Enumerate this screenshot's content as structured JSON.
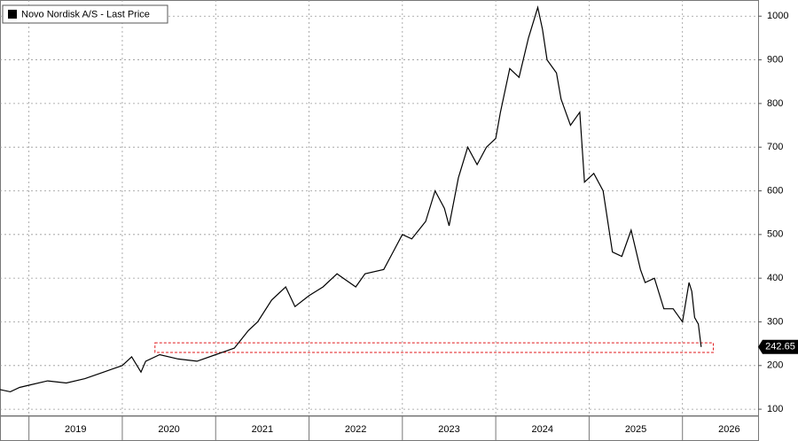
{
  "chart_data": {
    "type": "line",
    "series": [
      {
        "name": "Novo Nordisk A/S - Last Price",
        "color": "#000000",
        "x": [
          2018.69,
          2018.8,
          2018.9,
          2019.0,
          2019.2,
          2019.4,
          2019.6,
          2019.8,
          2020.0,
          2020.1,
          2020.2,
          2020.25,
          2020.4,
          2020.6,
          2020.8,
          2021.0,
          2021.2,
          2021.35,
          2021.45,
          2021.6,
          2021.75,
          2021.85,
          2022.0,
          2022.15,
          2022.3,
          2022.5,
          2022.6,
          2022.8,
          2022.9,
          2023.0,
          2023.1,
          2023.25,
          2023.35,
          2023.45,
          2023.5,
          2023.6,
          2023.7,
          2023.8,
          2023.9,
          2024.0,
          2024.05,
          2024.15,
          2024.25,
          2024.35,
          2024.45,
          2024.5,
          2024.55,
          2024.65,
          2024.7,
          2024.8,
          2024.9,
          2024.95,
          2025.05,
          2025.15,
          2025.25,
          2025.35,
          2025.45,
          2025.55,
          2025.6,
          2025.7,
          2025.8,
          2025.9,
          2026.0,
          2026.07,
          2026.1,
          2026.13,
          2026.17,
          2026.2
        ],
        "values": [
          145,
          140,
          150,
          155,
          165,
          160,
          170,
          185,
          200,
          220,
          185,
          210,
          225,
          215,
          210,
          225,
          240,
          280,
          300,
          350,
          380,
          335,
          360,
          380,
          410,
          380,
          410,
          420,
          460,
          500,
          490,
          530,
          600,
          560,
          520,
          630,
          700,
          660,
          700,
          720,
          780,
          880,
          860,
          950,
          1020,
          970,
          900,
          870,
          810,
          750,
          780,
          620,
          640,
          600,
          460,
          450,
          510,
          420,
          390,
          400,
          330,
          330,
          300,
          390,
          370,
          310,
          295,
          242.65
        ]
      }
    ],
    "xlim": [
      2018.69,
      2026.81
    ],
    "xticks": [
      {
        "value": 2019,
        "label": "2019"
      },
      {
        "value": 2020,
        "label": "2020"
      },
      {
        "value": 2021,
        "label": "2021"
      },
      {
        "value": 2022,
        "label": "2022"
      },
      {
        "value": 2023,
        "label": "2023"
      },
      {
        "value": 2024,
        "label": "2024"
      },
      {
        "value": 2025,
        "label": "2025"
      },
      {
        "value": 2026,
        "label": "2026"
      }
    ],
    "ylim": [
      84,
      1037
    ],
    "yticks": [
      100,
      200,
      300,
      400,
      500,
      600,
      700,
      800,
      900,
      1000
    ],
    "grid": true,
    "legend": "top-left",
    "highlight": {
      "xlim": [
        2020.35,
        2026.33
      ],
      "ylim": [
        230,
        252
      ],
      "color": "#e0191b"
    }
  }
}
